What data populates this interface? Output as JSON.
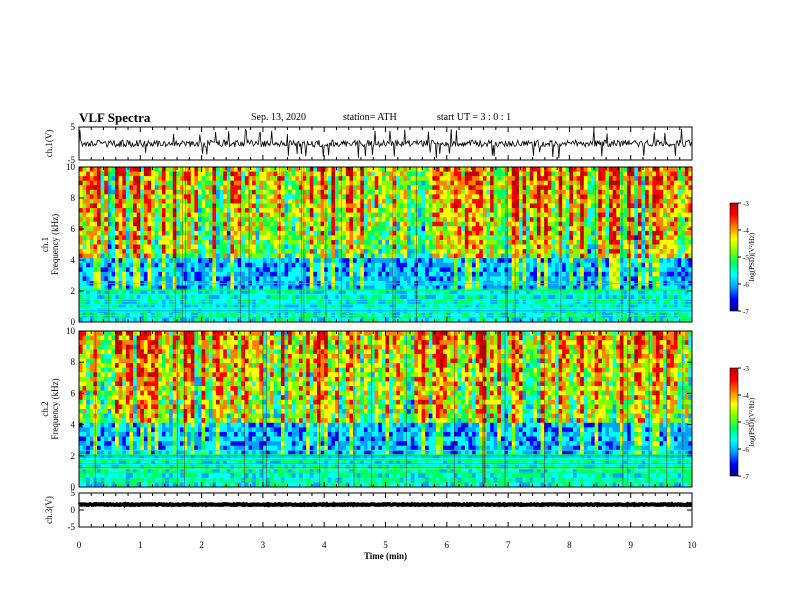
{
  "header": {
    "title": "VLF Spectra",
    "date": "Sep. 13, 2020",
    "station": "station= ATH",
    "start_ut": "start  UT  =   3  : 0   : 1"
  },
  "colors": {
    "spectrogram_scale": [
      "#000080",
      "#0000ff",
      "#00a0ff",
      "#00ffff",
      "#00ff60",
      "#80ff00",
      "#ffff00",
      "#ff8000",
      "#ff0000",
      "#c00000"
    ],
    "trace": "#000000",
    "background": "#ffffff"
  },
  "chart_data": [
    {
      "type": "line",
      "name": "ch1-waveform",
      "ylabel": "ch.1(V)",
      "ylim": [
        -5,
        5
      ],
      "yticks": [
        "5",
        "-5"
      ],
      "x_range_min": [
        0,
        10
      ],
      "series": [
        {
          "mean": 0,
          "amplitude_approx": 1.5
        }
      ]
    },
    {
      "type": "heatmap",
      "name": "ch1-spectrogram",
      "ylabel": "ch.1\nFrequency (kHz)",
      "ylim": [
        0,
        10
      ],
      "yticks": [
        "0",
        "2",
        "4",
        "6",
        "8",
        "10"
      ],
      "x_range_min": [
        0,
        10
      ],
      "colorbar": {
        "label": "log(PSD)(V²/Hz)",
        "range": [
          -7,
          -3
        ],
        "ticks": [
          "-3",
          "-4",
          "-5",
          "-6",
          "-7"
        ]
      }
    },
    {
      "type": "heatmap",
      "name": "ch2-spectrogram",
      "ylabel": "ch.2\nFrequency (kHz)",
      "ylim": [
        0,
        10
      ],
      "yticks": [
        "0",
        "2",
        "4",
        "6",
        "8",
        "10"
      ],
      "x_range_min": [
        0,
        10
      ],
      "colorbar": {
        "label": "log(PSD)(V²/Hz)",
        "range": [
          -7,
          -3
        ],
        "ticks": [
          "-3",
          "-4",
          "-5",
          "-6",
          "-7"
        ]
      }
    },
    {
      "type": "line",
      "name": "ch3-waveform",
      "ylabel": "ch.3(V)",
      "ylim": [
        -5,
        5
      ],
      "yticks": [
        "5",
        "0",
        "-5"
      ],
      "x_range_min": [
        0,
        10
      ],
      "series": [
        {
          "mean": 1.6,
          "amplitude_approx": 0.2
        }
      ]
    }
  ],
  "xaxis": {
    "label": "Time (min)",
    "ticks": [
      "0",
      "1",
      "2",
      "3",
      "4",
      "5",
      "6",
      "7",
      "8",
      "9",
      "10"
    ],
    "range": [
      0,
      10
    ]
  }
}
